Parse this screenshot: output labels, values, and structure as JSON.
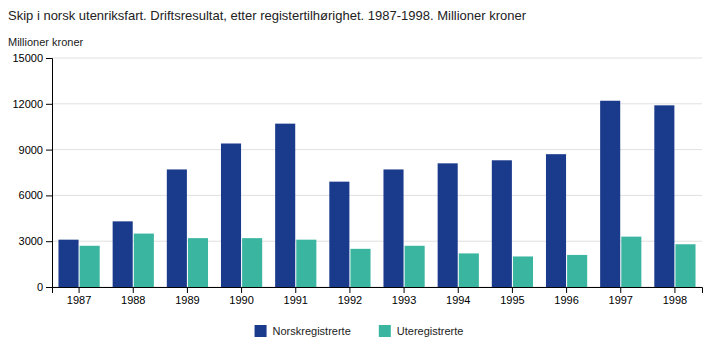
{
  "chart_data": {
    "type": "bar",
    "title": "Skip i norsk utenriksfart. Driftsresultat, etter registertilhørighet. 1987-1998. Millioner kroner",
    "y_label": "Millioner kroner",
    "categories": [
      "1987",
      "1988",
      "1989",
      "1990",
      "1991",
      "1992",
      "1993",
      "1994",
      "1995",
      "1996",
      "1997",
      "1998"
    ],
    "series": [
      {
        "name": "Norskregistrerte",
        "color": "#1a3a8c",
        "values": [
          3100,
          4300,
          7700,
          9400,
          10700,
          6900,
          7700,
          8100,
          8300,
          8700,
          12200,
          11900
        ]
      },
      {
        "name": "Uteregistrerte",
        "color": "#3ab5a0",
        "values": [
          2700,
          3500,
          3200,
          3200,
          3100,
          2500,
          2700,
          2200,
          2000,
          2100,
          3300,
          2800
        ]
      }
    ],
    "ylim": [
      0,
      15000
    ],
    "yticks": [
      0,
      3000,
      6000,
      9000,
      12000,
      15000
    ],
    "grid": true,
    "legend": "bottom"
  }
}
